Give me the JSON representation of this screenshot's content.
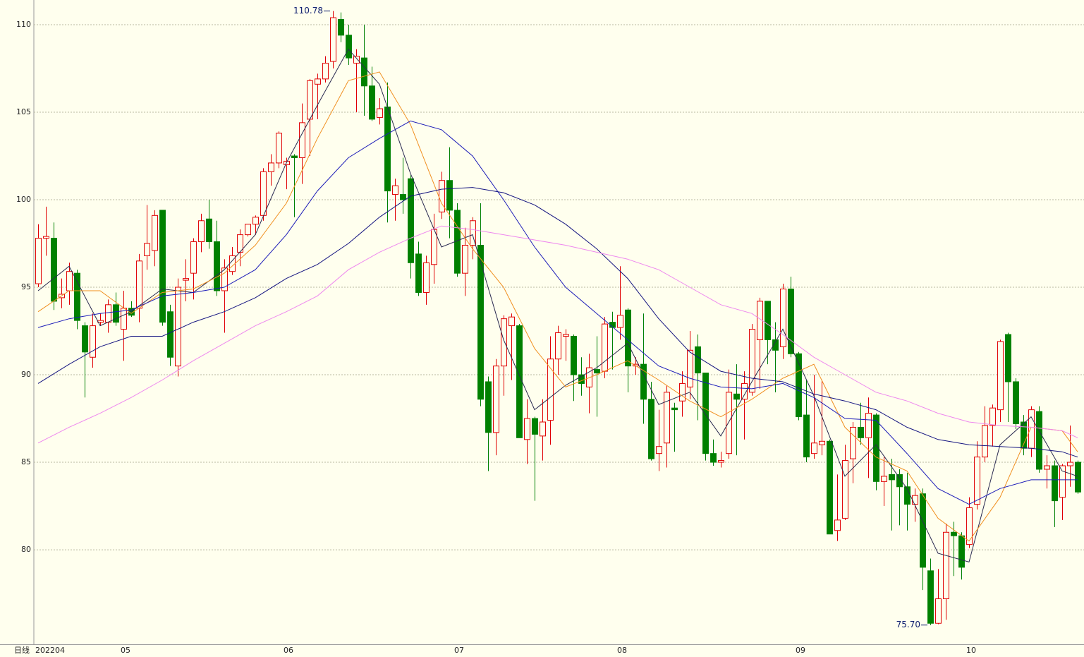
{
  "chart_data": {
    "type": "candlestick",
    "period_label": "日线",
    "categories": [
      "202204",
      null,
      null,
      null,
      null,
      null,
      null,
      null,
      null,
      null,
      null,
      "05",
      null,
      null,
      null,
      null,
      null,
      null,
      null,
      null,
      null,
      null,
      null,
      null,
      null,
      null,
      null,
      null,
      null,
      null,
      null,
      null,
      "06",
      null,
      null,
      null,
      null,
      null,
      null,
      null,
      null,
      null,
      null,
      null,
      null,
      null,
      null,
      null,
      null,
      null,
      null,
      null,
      null,
      null,
      "07",
      null,
      null,
      null,
      null,
      null,
      null,
      null,
      null,
      null,
      null,
      null,
      null,
      null,
      null,
      null,
      null,
      null,
      null,
      null,
      null,
      "08",
      null,
      null,
      null,
      null,
      null,
      null,
      null,
      null,
      null,
      null,
      null,
      null,
      null,
      null,
      null,
      null,
      null,
      null,
      null,
      null,
      null,
      null,
      "09",
      null,
      null,
      null,
      null,
      null,
      null,
      null,
      null,
      null,
      null,
      null,
      null,
      null,
      null,
      null,
      null,
      null,
      null,
      null,
      null,
      null,
      "10",
      null,
      null,
      null,
      null,
      null,
      null,
      null,
      null,
      null,
      null,
      null,
      null,
      null,
      null
    ],
    "open": [
      95.2,
      97.8,
      97.8,
      94.4,
      94.8,
      95.8,
      92.8,
      91.0,
      93.0,
      93.0,
      94.0,
      92.6,
      93.8,
      93.8,
      96.8,
      97.1,
      99.4,
      93.6,
      90.5,
      95.4,
      95.8,
      97.6,
      98.9,
      97.6,
      94.8,
      95.9,
      97.0,
      98.0,
      98.6,
      99.1,
      101.6,
      102.1,
      102.0,
      102.5,
      102.4,
      104.6,
      106.6,
      106.9,
      107.9,
      110.3,
      109.4,
      107.8,
      108.1,
      106.5,
      104.7,
      105.3,
      100.3,
      100.3,
      101.2,
      96.9,
      94.7,
      96.3,
      99.3,
      101.1,
      99.4,
      95.8,
      97.4,
      97.4,
      89.6,
      86.7,
      90.5,
      92.8,
      92.8,
      86.3,
      87.5,
      86.5,
      87.4,
      90.9,
      92.2,
      92.2,
      90.0,
      89.3,
      90.3,
      90.2,
      93.0,
      92.7,
      93.7,
      90.5,
      90.6,
      88.6,
      85.5,
      86.1,
      88.1,
      88.5,
      89.3,
      91.6,
      90.1,
      85.5,
      85.0,
      85.5,
      88.9,
      88.6,
      89.0,
      92.0,
      94.2,
      92.0,
      91.6,
      94.9,
      91.2,
      87.7,
      85.5,
      86.0,
      86.2,
      81.1,
      81.8,
      85.2,
      87.0,
      86.4,
      87.7,
      83.9,
      84.3,
      84.3,
      83.6,
      82.6,
      83.2,
      78.8,
      75.8,
      77.2,
      81.0,
      80.8,
      80.3,
      82.6,
      85.3,
      87.1,
      88.0,
      92.3,
      89.6,
      87.3,
      85.8,
      87.9,
      84.6,
      84.8,
      83.0,
      84.8,
      85.0
    ],
    "high": [
      98.6,
      99.6,
      98.7,
      95.5,
      96.4,
      96.0,
      93.0,
      93.5,
      93.5,
      94.3,
      94.7,
      94.8,
      94.2,
      96.9,
      99.7,
      99.4,
      99.4,
      94.0,
      95.5,
      96.6,
      97.8,
      99.2,
      100.0,
      98.8,
      96.6,
      97.3,
      98.3,
      98.6,
      99.1,
      101.8,
      102.6,
      103.9,
      102.4,
      102.6,
      105.5,
      106.9,
      107.2,
      108.2,
      110.78,
      110.7,
      110.0,
      108.6,
      110.0,
      107.6,
      105.8,
      106.7,
      101.2,
      102.4,
      101.4,
      97.6,
      96.8,
      99.2,
      101.6,
      103.0,
      99.8,
      98.4,
      99.0,
      99.8,
      89.9,
      90.9,
      93.4,
      93.5,
      92.9,
      88.6,
      87.6,
      88.6,
      92.2,
      92.8,
      92.6,
      92.3,
      91.0,
      91.2,
      92.2,
      93.3,
      93.6,
      96.2,
      93.8,
      91.0,
      93.5,
      89.6,
      88.0,
      89.4,
      88.4,
      90.2,
      92.5,
      92.3,
      90.1,
      86.3,
      85.6,
      90.3,
      90.6,
      90.2,
      92.9,
      94.4,
      94.2,
      93.0,
      95.2,
      95.6,
      91.3,
      89.7,
      90.0,
      89.7,
      86.3,
      84.3,
      86.0,
      87.3,
      88.4,
      88.7,
      87.8,
      85.3,
      85.2,
      84.6,
      84.4,
      83.5,
      83.5,
      79.5,
      78.9,
      81.5,
      81.6,
      81.0,
      83.0,
      86.2,
      88.2,
      88.3,
      92.0,
      92.4,
      89.8,
      87.7,
      88.2,
      88.2,
      85.4,
      85.1,
      84.9,
      87.1,
      85.1
    ],
    "low": [
      95.0,
      96.8,
      93.7,
      93.8,
      94.0,
      92.6,
      88.7,
      90.4,
      92.8,
      92.4,
      92.8,
      90.8,
      93.3,
      93.0,
      96.0,
      96.2,
      92.8,
      90.5,
      89.9,
      94.2,
      94.3,
      97.0,
      97.2,
      94.5,
      92.4,
      95.7,
      96.2,
      97.9,
      98.0,
      98.8,
      100.8,
      101.8,
      100.6,
      99.0,
      100.9,
      102.5,
      104.6,
      106.7,
      107.5,
      109.0,
      107.7,
      105.0,
      104.8,
      104.5,
      104.3,
      98.7,
      98.8,
      99.2,
      95.5,
      94.5,
      94.0,
      95.2,
      98.9,
      97.8,
      95.6,
      94.5,
      96.6,
      88.2,
      84.5,
      85.4,
      88.8,
      89.7,
      86.4,
      84.9,
      82.8,
      85.1,
      86.0,
      90.0,
      90.8,
      88.5,
      88.8,
      87.8,
      87.6,
      89.8,
      90.3,
      92.0,
      89.0,
      90.0,
      87.2,
      85.1,
      84.5,
      84.7,
      85.6,
      87.6,
      88.6,
      87.4,
      85.1,
      84.8,
      84.7,
      85.2,
      85.4,
      86.3,
      88.8,
      89.2,
      90.6,
      89.0,
      90.9,
      91.0,
      87.4,
      85.0,
      85.2,
      85.4,
      80.9,
      80.5,
      81.7,
      83.8,
      86.0,
      84.1,
      83.4,
      82.5,
      81.1,
      81.4,
      81.1,
      81.6,
      77.7,
      75.7,
      75.75,
      76.0,
      78.5,
      78.3,
      80.1,
      82.3,
      85.0,
      85.9,
      87.3,
      87.3,
      86.9,
      85.4,
      85.3,
      84.4,
      83.5,
      81.3,
      81.7,
      83.6,
      83.2
    ],
    "close": [
      97.8,
      97.9,
      94.2,
      94.6,
      95.9,
      93.1,
      91.3,
      92.8,
      93.1,
      94.0,
      93.0,
      93.8,
      93.4,
      96.5,
      97.5,
      99.1,
      93.0,
      91.0,
      95.0,
      95.5,
      97.6,
      98.8,
      97.6,
      94.8,
      96.1,
      96.8,
      98.0,
      98.6,
      99.0,
      101.6,
      102.1,
      103.8,
      102.2,
      102.4,
      104.4,
      106.8,
      106.9,
      107.8,
      110.4,
      109.4,
      108.1,
      108.2,
      106.5,
      104.6,
      105.2,
      100.5,
      100.8,
      100.0,
      96.4,
      94.7,
      96.4,
      98.3,
      101.1,
      99.4,
      95.8,
      97.4,
      98.8,
      88.6,
      86.7,
      90.5,
      93.2,
      93.3,
      86.4,
      87.5,
      86.6,
      87.3,
      90.9,
      92.4,
      92.3,
      90.0,
      89.5,
      90.4,
      90.1,
      92.9,
      92.7,
      93.4,
      90.5,
      90.6,
      88.6,
      85.2,
      85.9,
      89.0,
      88.0,
      89.5,
      91.4,
      90.1,
      85.5,
      85.0,
      85.1,
      89.0,
      88.6,
      89.5,
      92.6,
      94.2,
      92.0,
      91.4,
      94.9,
      91.2,
      87.6,
      85.3,
      86.1,
      86.2,
      80.9,
      81.7,
      85.1,
      87.0,
      86.4,
      87.8,
      83.9,
      84.2,
      84.0,
      83.6,
      82.6,
      83.1,
      79.0,
      75.8,
      77.2,
      81.0,
      80.8,
      79.0,
      82.4,
      85.3,
      87.1,
      88.1,
      91.9,
      89.6,
      87.2,
      85.8,
      88.0,
      84.6,
      84.8,
      82.8,
      84.8,
      85.0,
      83.3
    ],
    "up_color": "#e00000",
    "down_color": "#008000",
    "series": [
      {
        "color": "#2a2a50",
        "x": [
          0,
          4,
          8,
          12,
          16,
          20,
          24,
          28,
          32,
          36,
          40,
          44,
          48,
          52,
          56,
          60,
          64,
          68,
          72,
          76,
          80,
          84,
          88,
          92,
          96,
          100,
          104,
          108,
          112,
          116,
          120,
          124,
          128,
          132,
          134
        ],
        "values": [
          94.8,
          96.2,
          92.8,
          93.6,
          94.9,
          94.7,
          96.0,
          98.0,
          102.1,
          105.4,
          108.6,
          106.6,
          101.5,
          97.3,
          98.0,
          92.0,
          88.0,
          89.4,
          90.4,
          91.8,
          88.3,
          89.0,
          86.5,
          89.6,
          92.6,
          88.8,
          84.2,
          86.0,
          83.5,
          79.8,
          79.3,
          86.0,
          87.6,
          84.5,
          84.2
        ]
      },
      {
        "color": "#f09020",
        "x": [
          0,
          4,
          8,
          12,
          16,
          20,
          24,
          28,
          32,
          36,
          40,
          44,
          48,
          52,
          56,
          60,
          64,
          68,
          72,
          76,
          80,
          84,
          88,
          92,
          96,
          100,
          104,
          108,
          112,
          116,
          120,
          124,
          128,
          132,
          134
        ],
        "values": [
          93.6,
          94.8,
          94.8,
          93.5,
          94.7,
          94.9,
          95.8,
          97.4,
          99.8,
          103.5,
          106.8,
          107.3,
          104.3,
          99.8,
          97.2,
          95.0,
          91.5,
          89.3,
          90.0,
          90.8,
          89.7,
          88.5,
          87.6,
          88.6,
          89.8,
          90.6,
          87.0,
          85.3,
          84.5,
          81.8,
          80.5,
          83.0,
          87.0,
          86.8,
          85.6
        ]
      },
      {
        "color": "#1c1cb8",
        "x": [
          0,
          4,
          8,
          12,
          16,
          20,
          24,
          28,
          32,
          36,
          40,
          44,
          48,
          52,
          56,
          60,
          64,
          68,
          72,
          76,
          80,
          84,
          88,
          92,
          96,
          100,
          104,
          108,
          112,
          116,
          120,
          124,
          128,
          132,
          134
        ],
        "values": [
          92.7,
          93.2,
          93.5,
          93.7,
          94.5,
          94.7,
          95.0,
          96.0,
          98.0,
          100.5,
          102.4,
          103.5,
          104.5,
          104.0,
          102.5,
          100.0,
          97.3,
          95.0,
          93.5,
          92.0,
          90.5,
          89.8,
          89.3,
          89.2,
          89.5,
          88.7,
          87.5,
          87.4,
          85.5,
          83.5,
          82.6,
          83.5,
          84.0,
          84.0,
          84.0
        ]
      },
      {
        "color": "#151580",
        "x": [
          0,
          4,
          8,
          12,
          16,
          20,
          24,
          28,
          32,
          36,
          40,
          44,
          48,
          52,
          56,
          60,
          64,
          68,
          72,
          76,
          80,
          84,
          88,
          92,
          96,
          100,
          104,
          108,
          112,
          116,
          120,
          124,
          128,
          132,
          134
        ],
        "values": [
          89.5,
          90.6,
          91.6,
          92.2,
          92.2,
          93.0,
          93.6,
          94.4,
          95.5,
          96.3,
          97.5,
          99.0,
          100.2,
          100.6,
          100.7,
          100.4,
          99.7,
          98.6,
          97.2,
          95.5,
          93.2,
          91.3,
          90.2,
          89.8,
          89.6,
          88.9,
          88.5,
          88.0,
          87.0,
          86.3,
          86.0,
          85.9,
          85.8,
          85.6,
          85.3
        ]
      },
      {
        "color": "#ee88ee",
        "x": [
          0,
          4,
          8,
          12,
          16,
          20,
          24,
          28,
          32,
          36,
          40,
          44,
          48,
          52,
          56,
          60,
          64,
          68,
          72,
          76,
          80,
          84,
          88,
          92,
          96,
          100,
          104,
          108,
          112,
          116,
          120,
          124,
          128,
          132,
          134
        ],
        "values": [
          86.1,
          87.0,
          87.8,
          88.7,
          89.7,
          90.8,
          91.8,
          92.8,
          93.6,
          94.5,
          96.0,
          97.0,
          97.8,
          98.5,
          98.3,
          98.0,
          97.7,
          97.4,
          97.0,
          96.6,
          96.0,
          95.0,
          94.0,
          93.5,
          92.3,
          91.0,
          90.0,
          89.0,
          88.5,
          87.8,
          87.3,
          87.1,
          87.0,
          86.8,
          86.4
        ]
      }
    ],
    "annotations": [
      {
        "value": 110.78,
        "label": "110.78"
      },
      {
        "value": 75.7,
        "label": "75.70"
      }
    ],
    "ylim": [
      74.6,
      111.41
    ],
    "yticks": [
      80,
      85,
      90,
      95,
      100,
      105,
      110
    ],
    "grid": true
  }
}
